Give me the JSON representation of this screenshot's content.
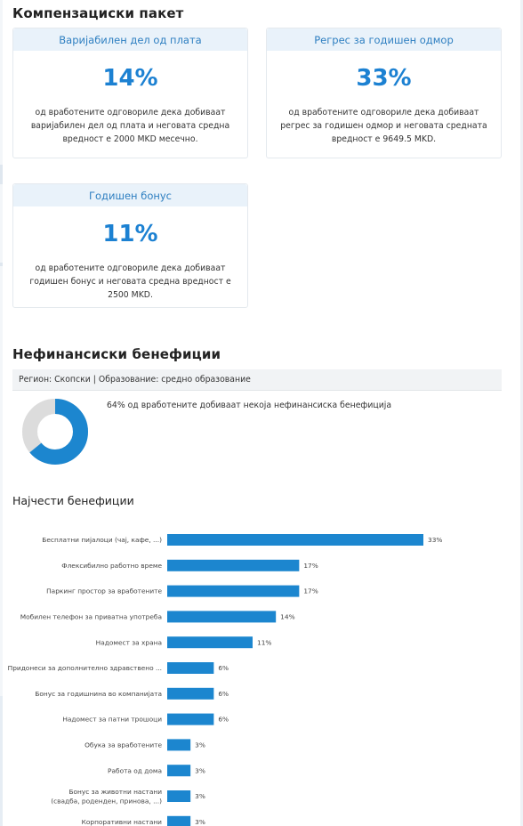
{
  "compensation": {
    "title": "Компензациски пакет",
    "cards": [
      {
        "header": "Варијабилен дел од плата",
        "value": "14%",
        "description": "од вработените одговориле дека добиваат варијабилен дел од плата и неговата средна вредност е 2000 MKD месечно."
      },
      {
        "header": "Регрес за годишен одмор",
        "value": "33%",
        "description": "од вработените одговориле дека добиваат регрес за годишен одмор и неговата средната вредност е 9649.5 MKD."
      },
      {
        "header": "Годишен бонус",
        "value": "11%",
        "description": "од вработените одговориле дека добиваат годишен бонус и неговата средна вредност е 2500 MKD."
      }
    ]
  },
  "benefits": {
    "title": "Нефинансиски бенефиции",
    "filter": {
      "region": "Регион: Скопски",
      "separator": "|",
      "education": "Образование: средно образование"
    },
    "donut": {
      "percent": 64,
      "text": "64% од вработените добиваат некоја нефинансиска бенефиција",
      "fill_color": "#1c86cf",
      "rest_color": "#dcdcdc"
    },
    "top_title": "Најчести бенефиции"
  },
  "chart_data": {
    "type": "bar",
    "orientation": "horizontal",
    "bar_color": "#1c86cf",
    "categories": [
      [
        "Бесплатни пијалоци (чај, кафе, ...)"
      ],
      [
        "Флексибилно работно време"
      ],
      [
        "Паркинг простор за вработените"
      ],
      [
        "Мобилен телефон за приватна употреба"
      ],
      [
        "Надомест за храна"
      ],
      [
        "Придонеси за дополнително здравствено ..."
      ],
      [
        "Бонус за годишнина во компанијата"
      ],
      [
        "Надомест за патни трошоци"
      ],
      [
        "Обука за вработените"
      ],
      [
        "Работа од дома"
      ],
      [
        "Бонус за животни настани",
        "(свадба, роденден, принова, ...)"
      ],
      [
        "Корпоративни настани"
      ]
    ],
    "values": [
      33,
      17,
      17,
      14,
      11,
      6,
      6,
      6,
      3,
      3,
      3,
      3
    ],
    "value_labels": [
      "33%",
      "17%",
      "17%",
      "14%",
      "11%",
      "6%",
      "6%",
      "6%",
      "3%",
      "3%",
      "3%",
      "3%"
    ],
    "xlim": [
      0,
      33
    ]
  }
}
